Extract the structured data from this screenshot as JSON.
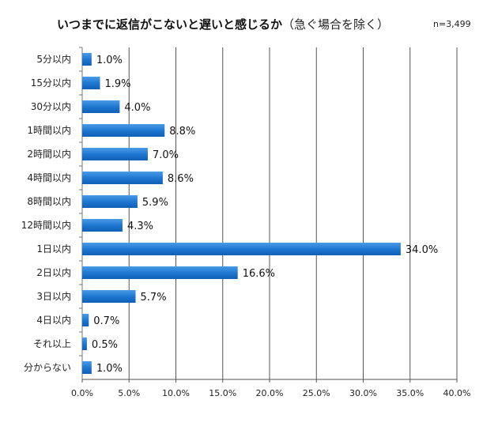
{
  "chart_data": {
    "type": "bar",
    "orientation": "horizontal",
    "title": "いつまでに返信がこないと遅いと感じるか",
    "subtitle": "（急ぐ場合を除く）",
    "note": "n=3,499",
    "categories": [
      "5分以内",
      "15分以内",
      "30分以内",
      "1時間以内",
      "2時間以内",
      "4時間以内",
      "8時間以内",
      "12時間以内",
      "1日以内",
      "2日以内",
      "3日以内",
      "4日以内",
      "それ以上",
      "分からない"
    ],
    "values": [
      1.0,
      1.9,
      4.0,
      8.8,
      7.0,
      8.6,
      5.9,
      4.3,
      34.0,
      16.6,
      5.7,
      0.7,
      0.5,
      1.0
    ],
    "data_labels": [
      "1.0%",
      "1.9%",
      "4.0%",
      "8.8%",
      "7.0%",
      "8.6%",
      "5.9%",
      "4.3%",
      "34.0%",
      "16.6%",
      "5.7%",
      "0.7%",
      "0.5%",
      "1.0%"
    ],
    "xlim": [
      0,
      40
    ],
    "xticks": [
      0,
      5,
      10,
      15,
      20,
      25,
      30,
      35,
      40
    ],
    "xtick_labels": [
      "0.0%",
      "5.0%",
      "10.0%",
      "15.0%",
      "20.0%",
      "25.0%",
      "30.0%",
      "35.0%",
      "40.0%"
    ],
    "grid": "vertical",
    "bar_color": "#1f78d1",
    "xlabel": "",
    "ylabel": ""
  }
}
